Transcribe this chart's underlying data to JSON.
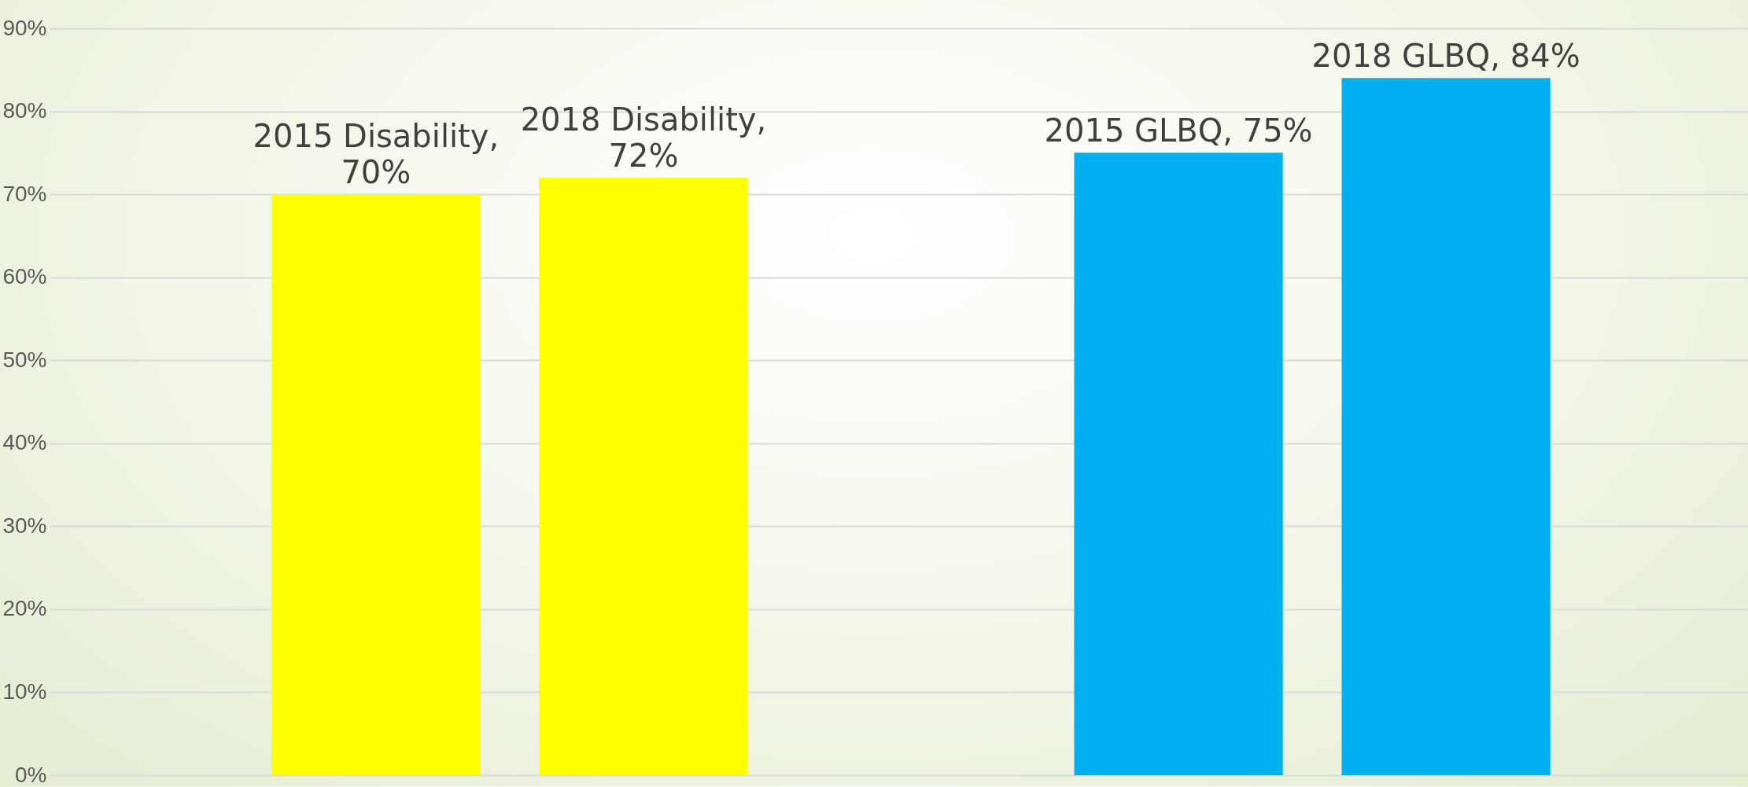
{
  "chart_data": {
    "type": "bar",
    "categories": [
      null,
      null,
      null,
      null,
      null
    ],
    "values": [
      70,
      72,
      null,
      75,
      84
    ],
    "colors": [
      "#ffff00",
      "#ffff00",
      null,
      "#00b0f0",
      "#00b0f0"
    ],
    "value_labels": [
      "2015 Disability, 70%",
      "2018 Disability, 72%",
      null,
      "2015 GLBQ, 75%",
      "2018 GLBQ, 84%"
    ],
    "ylim": [
      0,
      90
    ],
    "yticks": [
      {
        "value": 0,
        "label": "0%"
      },
      {
        "value": 10,
        "label": "10%"
      },
      {
        "value": 20,
        "label": "20%"
      },
      {
        "value": 30,
        "label": "30%"
      },
      {
        "value": 40,
        "label": "40%"
      },
      {
        "value": 50,
        "label": "50%"
      },
      {
        "value": 60,
        "label": "60%"
      },
      {
        "value": 70,
        "label": "70%"
      },
      {
        "value": 80,
        "label": "80%"
      },
      {
        "value": 90,
        "label": "90%"
      }
    ],
    "grid": true,
    "legend": false
  }
}
